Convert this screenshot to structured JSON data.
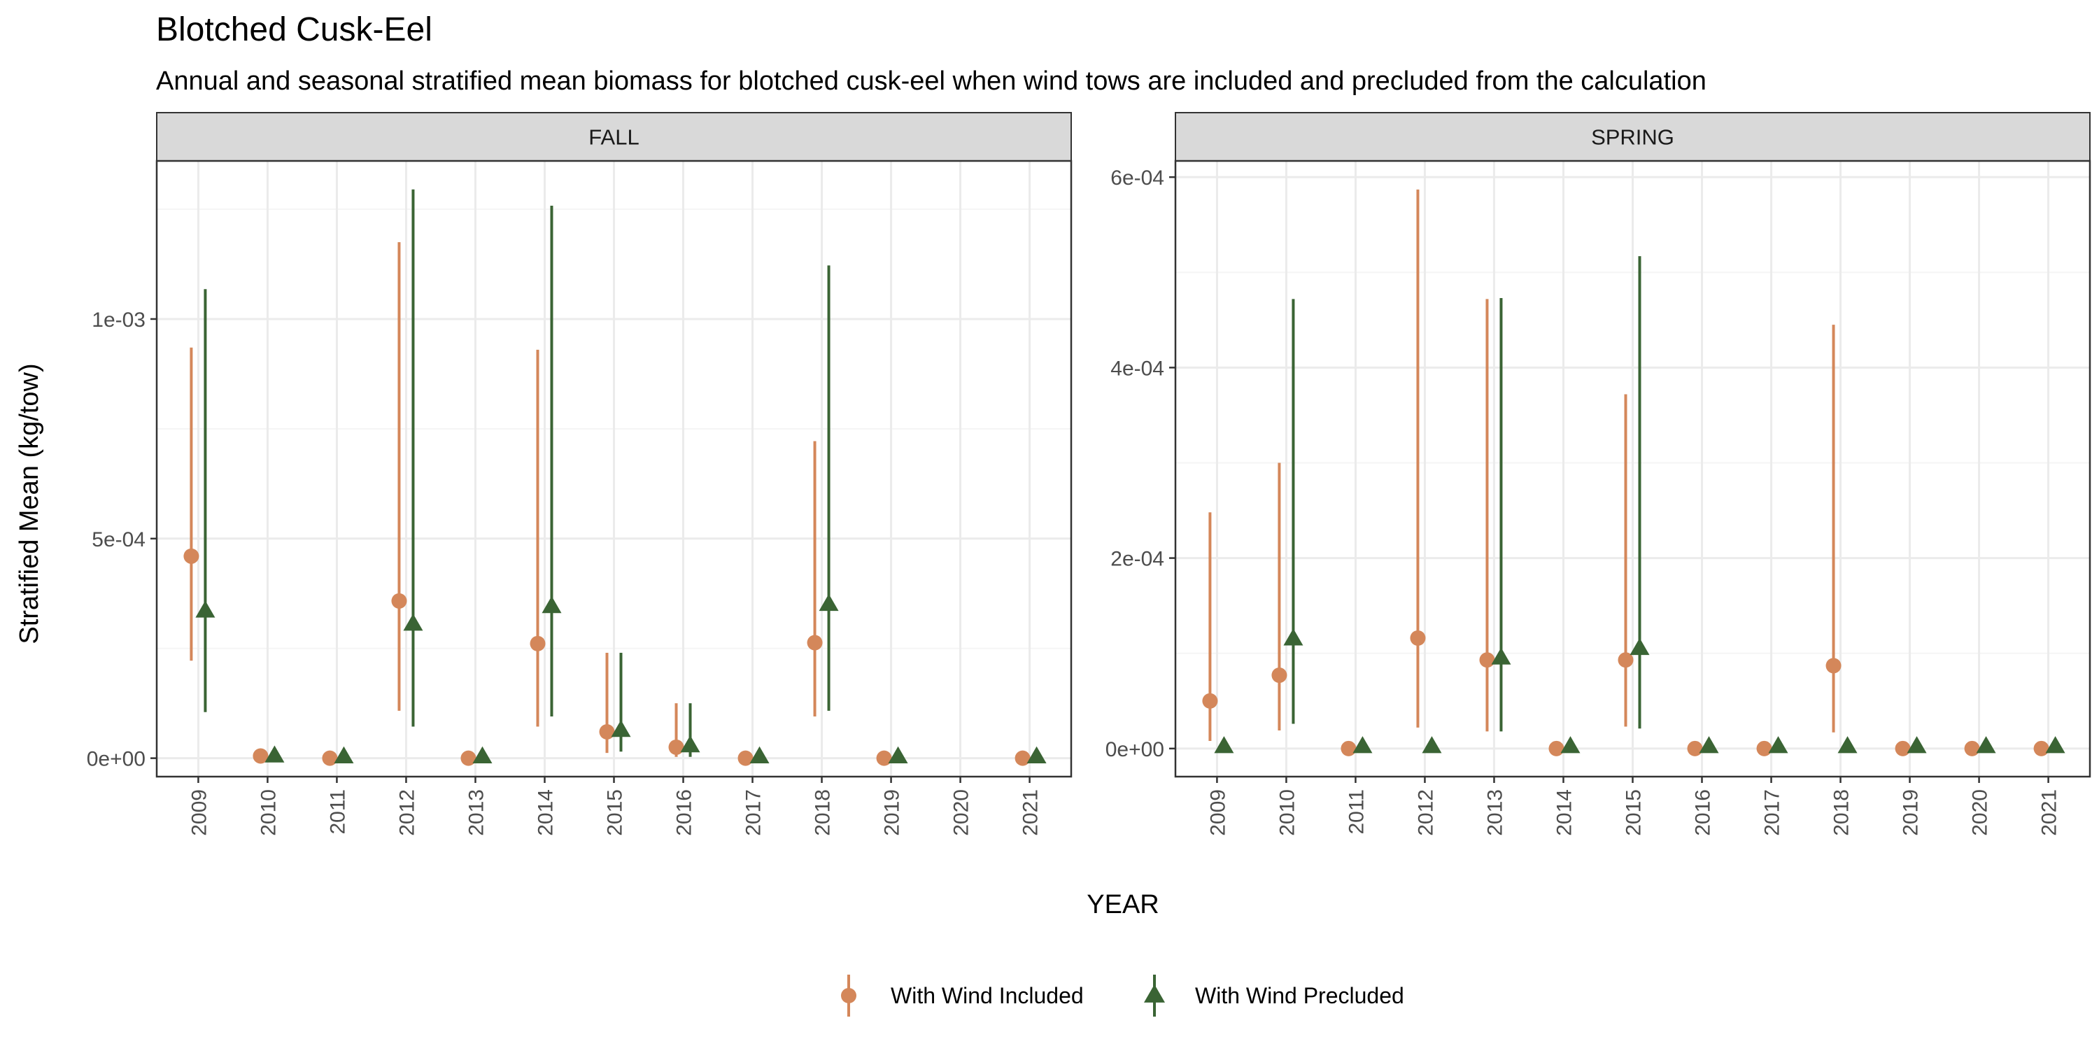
{
  "title": "Blotched Cusk-Eel",
  "subtitle": "Annual and seasonal stratified mean biomass for blotched cusk-eel when wind tows are included and precluded from the calculation",
  "xlabel": "YEAR",
  "ylabel": "Stratified Mean (kg/tow)",
  "colors": {
    "included": "#D4875A",
    "precluded": "#3A6434",
    "strip_fill": "#D9D9D9",
    "grid_major": "#EBEBEB",
    "grid_minor": "#F5F5F5",
    "panel_border": "#333333"
  },
  "legend": {
    "position": "bottom",
    "items": [
      {
        "label": "With Wind Included",
        "marker": "circle",
        "color": "#D4875A"
      },
      {
        "label": "With Wind Precluded",
        "marker": "triangle",
        "color": "#3A6434"
      }
    ]
  },
  "chart_data": [
    {
      "type": "scatter",
      "facet": "FALL",
      "categories": [
        "2009",
        "2010",
        "2011",
        "2012",
        "2013",
        "2014",
        "2015",
        "2016",
        "2017",
        "2018",
        "2019",
        "2020",
        "2021"
      ],
      "ylim": [
        -4.2e-05,
        0.00136
      ],
      "yticks": [
        0,
        0.0005,
        0.001
      ],
      "ytick_labels": [
        "0e+00",
        "5e-04",
        "1e-03"
      ],
      "grid": true,
      "series": [
        {
          "name": "With Wind Included",
          "marker": "circle",
          "values": [
            0.00046,
            5e-06,
            0,
            0.000358,
            0,
            0.000261,
            6e-05,
            2.5e-05,
            0,
            0.000263,
            0,
            null,
            0
          ],
          "lower": [
            0.000222,
            null,
            null,
            0.000108,
            null,
            7.2e-05,
            1.2e-05,
            3e-06,
            null,
            9.5e-05,
            null,
            null,
            null
          ],
          "upper": [
            0.000935,
            null,
            null,
            0.001175,
            null,
            0.00093,
            0.00024,
            0.000125,
            null,
            0.000722,
            null,
            null,
            null
          ]
        },
        {
          "name": "With Wind Precluded",
          "marker": "triangle",
          "values": [
            0.000335,
            5e-06,
            3e-06,
            0.000305,
            3e-06,
            0.000345,
            6.3e-05,
            2.8e-05,
            3e-06,
            0.00035,
            3e-06,
            null,
            3e-06
          ],
          "lower": [
            0.000105,
            null,
            null,
            7.2e-05,
            null,
            9.5e-05,
            1.5e-05,
            3e-06,
            null,
            0.000108,
            null,
            null,
            null
          ],
          "upper": [
            0.001068,
            null,
            null,
            0.001295,
            null,
            0.001258,
            0.00024,
            0.000125,
            null,
            0.001122,
            null,
            null,
            null
          ]
        }
      ]
    },
    {
      "type": "scatter",
      "facet": "SPRING",
      "categories": [
        "2009",
        "2010",
        "2011",
        "2012",
        "2013",
        "2014",
        "2015",
        "2016",
        "2017",
        "2018",
        "2019",
        "2020",
        "2021"
      ],
      "ylim": [
        -2.95e-05,
        0.000617
      ],
      "yticks": [
        0,
        0.0002,
        0.0004,
        0.0006
      ],
      "ytick_labels": [
        "0e+00",
        "2e-04",
        "4e-04",
        "6e-04"
      ],
      "grid": true,
      "series": [
        {
          "name": "With Wind Included",
          "marker": "circle",
          "values": [
            5e-05,
            7.7e-05,
            0,
            0.000116,
            9.3e-05,
            0,
            9.3e-05,
            0,
            0,
            8.7e-05,
            0,
            0,
            0
          ],
          "lower": [
            8e-06,
            1.9e-05,
            null,
            2.2e-05,
            1.8e-05,
            null,
            2.3e-05,
            null,
            null,
            1.7e-05,
            null,
            null,
            null
          ],
          "upper": [
            0.000248,
            0.0003,
            null,
            0.000587,
            0.000472,
            null,
            0.000372,
            null,
            null,
            0.000445,
            null,
            null,
            null
          ]
        },
        {
          "name": "With Wind Precluded",
          "marker": "triangle",
          "values": [
            2e-06,
            0.000115,
            2e-06,
            2e-06,
            9.5e-05,
            2e-06,
            0.000105,
            2e-06,
            2e-06,
            2e-06,
            2e-06,
            2e-06,
            2e-06
          ],
          "lower": [
            null,
            2.6e-05,
            null,
            null,
            1.8e-05,
            null,
            2.1e-05,
            null,
            null,
            null,
            null,
            null,
            null
          ],
          "upper": [
            null,
            0.000472,
            null,
            null,
            0.000473,
            null,
            0.000517,
            null,
            null,
            null,
            null,
            null,
            null
          ]
        }
      ]
    }
  ]
}
